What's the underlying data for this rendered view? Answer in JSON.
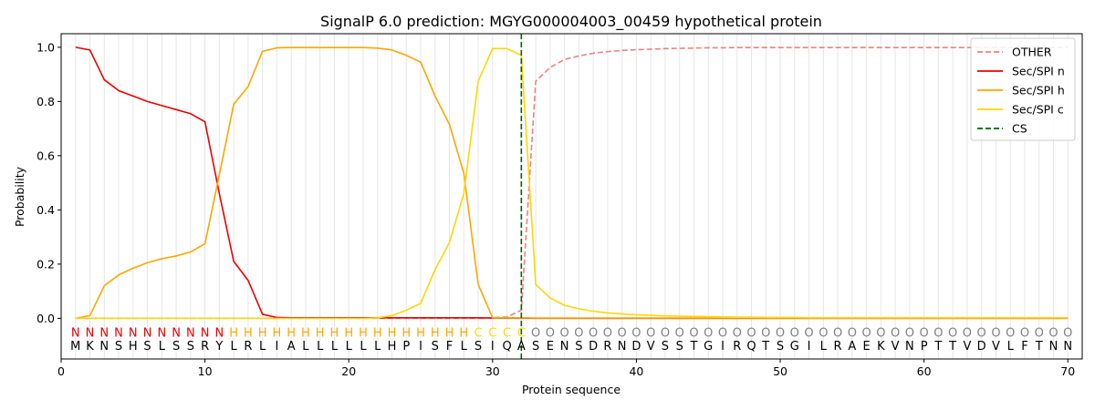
{
  "chart_data": {
    "type": "line",
    "title": "SignalP 6.0 prediction: MGYG000004003_00459 hypothetical protein",
    "xlabel": "Protein sequence",
    "ylabel": "Probability",
    "xlim": [
      0,
      71
    ],
    "ylim": [
      -0.15,
      1.05
    ],
    "xticks": [
      0,
      10,
      20,
      30,
      40,
      50,
      60,
      70
    ],
    "yticks": [
      "0.0",
      "0.2",
      "0.4",
      "0.6",
      "0.8",
      "1.0"
    ],
    "grid": "vertical lines at each residue",
    "legend_position": "top-right",
    "sequence": [
      "M",
      "K",
      "N",
      "S",
      "H",
      "S",
      "L",
      "S",
      "S",
      "R",
      "Y",
      "L",
      "R",
      "L",
      "I",
      "A",
      "L",
      "L",
      "L",
      "L",
      "L",
      "L",
      "H",
      "P",
      "I",
      "S",
      "F",
      "L",
      "S",
      "I",
      "Q",
      "A",
      "S",
      "E",
      "N",
      "S",
      "D",
      "R",
      "N",
      "D",
      "V",
      "S",
      "S",
      "T",
      "G",
      "I",
      "R",
      "Q",
      "T",
      "S",
      "G",
      "I",
      "L",
      "R",
      "A",
      "E",
      "K",
      "V",
      "N",
      "P",
      "T",
      "T",
      "V",
      "D",
      "V",
      "L",
      "F",
      "T",
      "N",
      "N"
    ],
    "labels": [
      "N",
      "N",
      "N",
      "N",
      "N",
      "N",
      "N",
      "N",
      "N",
      "N",
      "N",
      "H",
      "H",
      "H",
      "H",
      "H",
      "H",
      "H",
      "H",
      "H",
      "H",
      "H",
      "H",
      "H",
      "H",
      "H",
      "H",
      "H",
      "C",
      "C",
      "C",
      "C",
      "O",
      "O",
      "O",
      "O",
      "O",
      "O",
      "O",
      "O",
      "O",
      "O",
      "O",
      "O",
      "O",
      "O",
      "O",
      "O",
      "O",
      "O",
      "O",
      "O",
      "O",
      "O",
      "O",
      "O",
      "O",
      "O",
      "O",
      "O",
      "O",
      "O",
      "O",
      "O",
      "O",
      "O",
      "O",
      "O",
      "O",
      "O"
    ],
    "label_colors": {
      "N": "#ee0000",
      "H": "#ffa500",
      "C": "#ffd700",
      "O": "#808080"
    },
    "cleavage_site": 32,
    "series": [
      {
        "name": "OTHER",
        "color": "#f08080",
        "dash": true,
        "values": [
          0,
          0,
          0,
          0,
          0,
          0,
          0,
          0,
          0,
          0,
          0,
          0,
          0,
          0,
          0,
          0,
          0,
          0,
          0,
          0,
          0,
          0,
          0,
          0,
          0,
          0,
          0,
          0,
          0,
          0.002,
          0.005,
          0.03,
          0.875,
          0.925,
          0.955,
          0.968,
          0.978,
          0.984,
          0.988,
          0.991,
          0.993,
          0.995,
          0.996,
          0.997,
          0.998,
          0.998,
          0.999,
          0.999,
          0.999,
          0.999,
          0.999,
          0.999,
          0.999,
          0.999,
          0.999,
          0.999,
          0.999,
          0.999,
          0.999,
          0.999,
          0.999,
          0.999,
          0.999,
          0.999,
          0.999,
          0.999,
          0.999,
          0.999,
          0.999,
          0.999
        ]
      },
      {
        "name": "Sec/SPI n",
        "color": "#ee0000",
        "dash": false,
        "values": [
          1.0,
          0.99,
          0.88,
          0.84,
          0.82,
          0.8,
          0.785,
          0.77,
          0.755,
          0.725,
          0.46,
          0.21,
          0.14,
          0.015,
          0.003,
          0.002,
          0.002,
          0.002,
          0.002,
          0.002,
          0.002,
          0.002,
          0.002,
          0.002,
          0.002,
          0.002,
          0.002,
          0.002,
          0.002,
          0.001,
          0.001,
          0.001,
          0,
          0,
          0,
          0,
          0,
          0,
          0,
          0,
          0,
          0,
          0,
          0,
          0,
          0,
          0,
          0,
          0,
          0,
          0,
          0,
          0,
          0,
          0,
          0,
          0,
          0,
          0,
          0,
          0,
          0,
          0,
          0,
          0,
          0,
          0,
          0,
          0,
          0
        ]
      },
      {
        "name": "Sec/SPI h",
        "color": "#ffa500",
        "dash": false,
        "values": [
          0,
          0.01,
          0.12,
          0.16,
          0.185,
          0.205,
          0.22,
          0.23,
          0.245,
          0.275,
          0.53,
          0.79,
          0.855,
          0.985,
          0.998,
          0.999,
          0.999,
          0.999,
          0.999,
          0.999,
          0.999,
          0.997,
          0.99,
          0.97,
          0.945,
          0.82,
          0.715,
          0.535,
          0.125,
          0.002,
          0.002,
          0.002,
          0.001,
          0.001,
          0.001,
          0.001,
          0.001,
          0.001,
          0.001,
          0.001,
          0.001,
          0.001,
          0.001,
          0.001,
          0.001,
          0.001,
          0.001,
          0.001,
          0.001,
          0.001,
          0.001,
          0.001,
          0.001,
          0.001,
          0.001,
          0.001,
          0.001,
          0.001,
          0.001,
          0.001,
          0.001,
          0.001,
          0.001,
          0.001,
          0.001,
          0.001,
          0.001,
          0.001,
          0.001,
          0.001
        ]
      },
      {
        "name": "Sec/SPI c",
        "color": "#ffd700",
        "dash": false,
        "values": [
          0,
          0,
          0,
          0,
          0,
          0,
          0,
          0,
          0,
          0,
          0,
          0,
          0,
          0,
          0,
          0,
          0,
          0,
          0,
          0,
          0,
          0.002,
          0.01,
          0.03,
          0.055,
          0.18,
          0.28,
          0.46,
          0.875,
          0.995,
          0.995,
          0.97,
          0.125,
          0.075,
          0.048,
          0.035,
          0.026,
          0.02,
          0.016,
          0.013,
          0.011,
          0.009,
          0.008,
          0.007,
          0.006,
          0.005,
          0.004,
          0.004,
          0.003,
          0.003,
          0.003,
          0.002,
          0.002,
          0.002,
          0.002,
          0.002,
          0.002,
          0.002,
          0.002,
          0.002,
          0.002,
          0.002,
          0.002,
          0.002,
          0.002,
          0.002,
          0.002,
          0.002,
          0.002,
          0.002
        ]
      }
    ],
    "legend": [
      "OTHER",
      "Sec/SPI n",
      "Sec/SPI h",
      "Sec/SPI c",
      "CS"
    ],
    "cs_color": "#006400"
  }
}
